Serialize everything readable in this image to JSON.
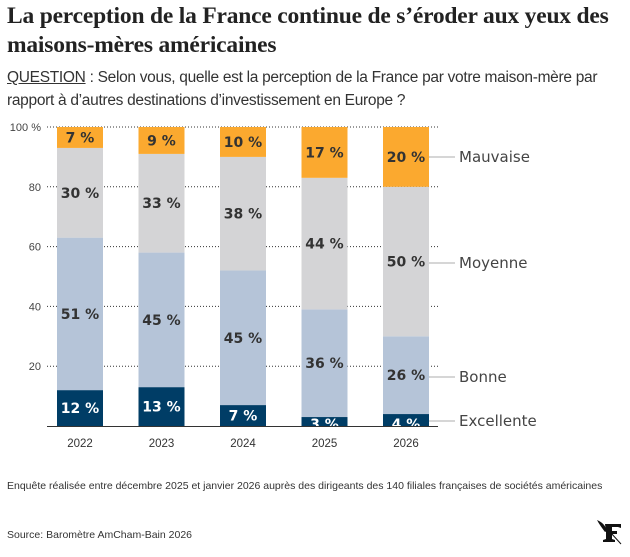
{
  "header": {
    "title": "La perception de la France continue de s’éroder aux yeux des maisons-mères américaines",
    "question_label": "QUESTION",
    "question_text": " : Selon vous, quelle est la perception de la France par votre maison-mère par rapport à d’autres destinations d’investissement en Europe ?"
  },
  "chart_data": {
    "type": "bar",
    "stacked": true,
    "title": "La perception de la France continue de s’éroder aux yeux des maisons-mères américaines",
    "xlabel": "",
    "ylabel": "",
    "ylim": [
      0,
      100
    ],
    "yticks": [
      0,
      20,
      40,
      60,
      80,
      100
    ],
    "ytick_labels": [
      "",
      "20",
      "40",
      "60",
      "80",
      "100 %"
    ],
    "grid": true,
    "legend": "right (direct labels)",
    "categories": [
      "2022",
      "2023",
      "2024",
      "2025",
      "2026"
    ],
    "series": [
      {
        "name": "Excellente",
        "color": "#003D66",
        "label_color": "#ffffff",
        "values": [
          12,
          13,
          7,
          3,
          4
        ]
      },
      {
        "name": "Bonne",
        "color": "#B5C4D8",
        "label_color": "#333333",
        "values": [
          51,
          45,
          45,
          36,
          26
        ]
      },
      {
        "name": "Moyenne",
        "color": "#D4D4D6",
        "label_color": "#333333",
        "values": [
          30,
          33,
          38,
          44,
          50
        ]
      },
      {
        "name": "Mauvaise",
        "color": "#FBA92F",
        "label_color": "#333333",
        "values": [
          7,
          9,
          10,
          17,
          20
        ]
      }
    ],
    "value_suffix": " %"
  },
  "footer": {
    "note": "Enquête réalisée entre décembre 2025 et janvier 2026 auprès des dirigeants des 140 filiales françaises de sociétés américaines",
    "source": "Source: Baromètre AmCham-Bain 2026",
    "logo": "le-figaro-logo-icon"
  }
}
